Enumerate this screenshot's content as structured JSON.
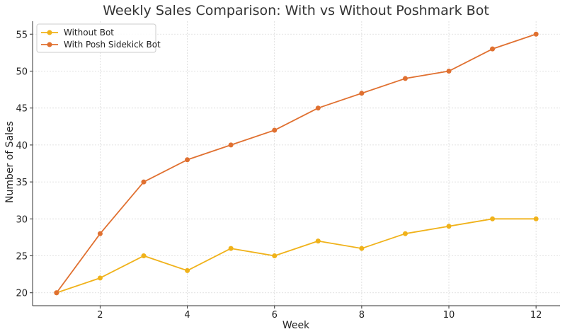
{
  "chart_data": {
    "type": "line",
    "title": "Weekly Sales Comparison: With vs Without Poshmark Bot",
    "xlabel": "Week",
    "ylabel": "Number of Sales",
    "x": [
      1,
      2,
      3,
      4,
      5,
      6,
      7,
      8,
      9,
      10,
      11,
      12
    ],
    "xticks": [
      2,
      4,
      6,
      8,
      10,
      12
    ],
    "yticks": [
      20,
      25,
      30,
      35,
      40,
      45,
      50,
      55
    ],
    "xlim": [
      0.45,
      12.55
    ],
    "ylim": [
      18.25,
      56.75
    ],
    "grid": true,
    "legend_position": "top-left",
    "series": [
      {
        "name": "Without Bot",
        "color": "#F0B21A",
        "values": [
          20,
          22,
          25,
          23,
          26,
          25,
          27,
          26,
          28,
          29,
          30,
          30
        ]
      },
      {
        "name": "With Posh Sidekick Bot",
        "color": "#E07030",
        "values": [
          20,
          28,
          35,
          38,
          40,
          42,
          45,
          47,
          49,
          50,
          53,
          55
        ]
      }
    ]
  }
}
